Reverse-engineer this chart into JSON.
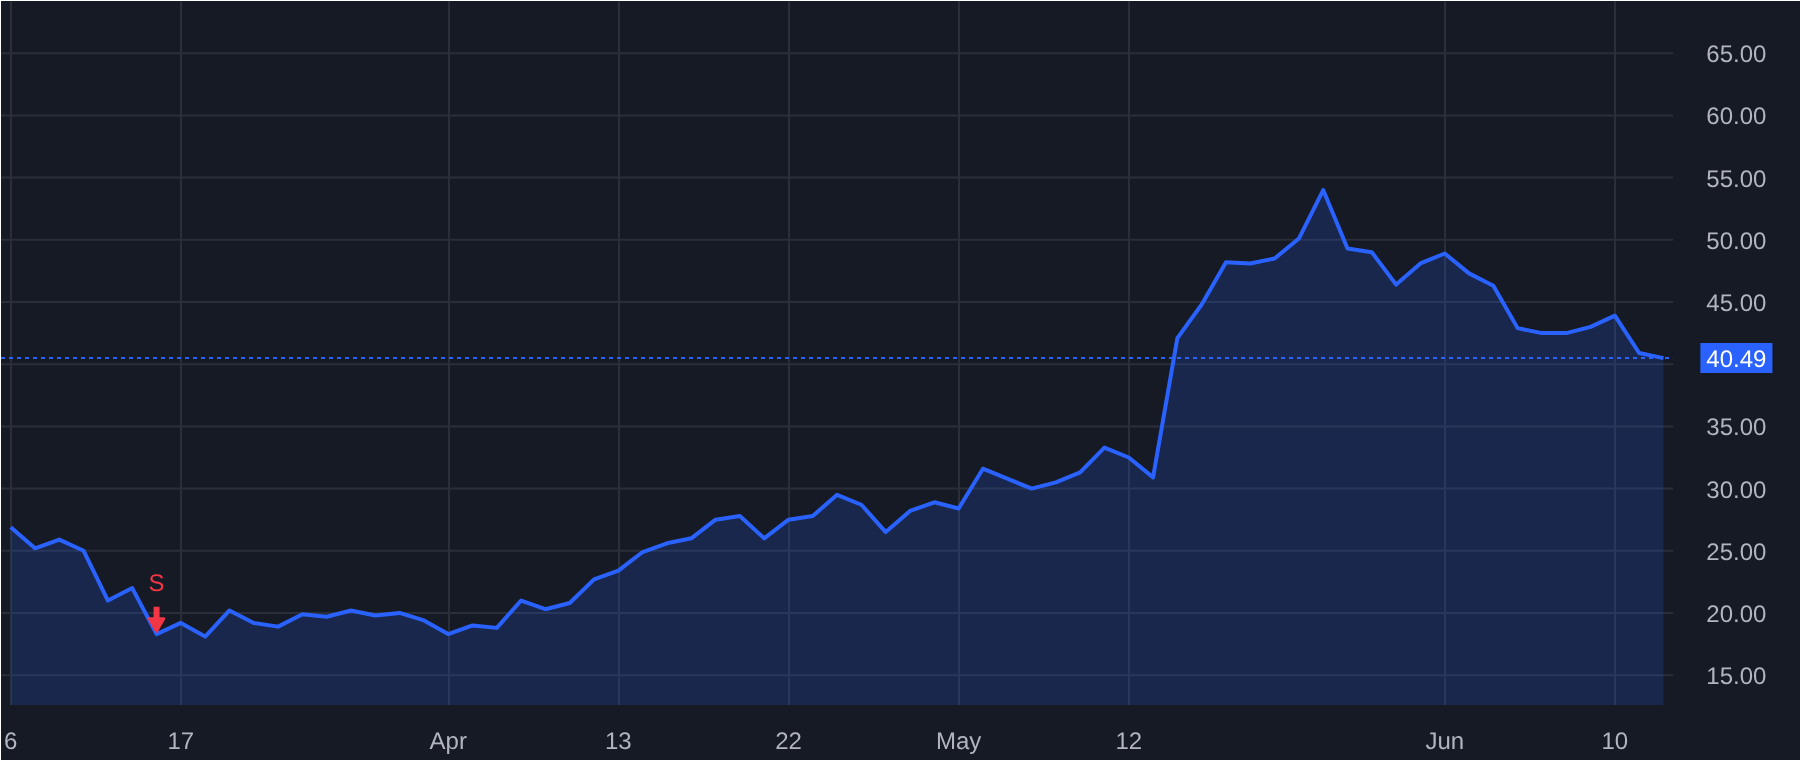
{
  "chart_data": {
    "type": "area",
    "categories": [
      "6",
      null,
      null,
      null,
      null,
      null,
      null,
      "17",
      null,
      null,
      null,
      null,
      null,
      null,
      null,
      null,
      null,
      null,
      "Apr",
      null,
      null,
      null,
      null,
      null,
      null,
      "13",
      null,
      null,
      null,
      null,
      null,
      null,
      "22",
      null,
      null,
      null,
      null,
      null,
      null,
      "May",
      null,
      null,
      null,
      null,
      null,
      null,
      "12",
      null,
      null,
      null,
      null,
      null,
      null,
      null,
      null,
      null,
      null,
      null,
      null,
      "Jun",
      null,
      null,
      null,
      null,
      null,
      null,
      "10",
      null,
      null
    ],
    "series": [
      {
        "color": "#2962ff",
        "values": [
          26.9,
          25.2,
          25.9,
          25.0,
          21.0,
          22.0,
          18.3,
          19.2,
          18.1,
          20.2,
          19.2,
          18.9,
          19.9,
          19.7,
          20.2,
          19.8,
          20.0,
          19.4,
          18.3,
          19.0,
          18.8,
          21.0,
          20.3,
          20.8,
          22.7,
          23.4,
          24.9,
          25.6,
          26.0,
          27.5,
          27.8,
          26.0,
          27.5,
          27.8,
          29.5,
          28.7,
          26.5,
          28.2,
          28.9,
          28.4,
          31.6,
          30.8,
          30.0,
          30.5,
          31.3,
          33.3,
          32.5,
          30.9,
          42.1,
          44.8,
          48.2,
          48.1,
          48.5,
          50.1,
          54.0,
          49.3,
          49.0,
          46.4,
          48.1,
          48.9,
          47.3,
          46.3,
          42.9,
          42.5,
          42.5,
          43.0,
          43.9,
          40.9,
          40.49
        ]
      }
    ],
    "ylim": [
      12.6,
      69.2
    ],
    "yticks": [
      {
        "value": 15,
        "label": "15.00"
      },
      {
        "value": 20,
        "label": "20.00"
      },
      {
        "value": 25,
        "label": "25.00"
      },
      {
        "value": 30,
        "label": "30.00"
      },
      {
        "value": 35,
        "label": "35.00"
      },
      {
        "value": 40,
        "label": null
      },
      {
        "value": 45,
        "label": "45.00"
      },
      {
        "value": 50,
        "label": "50.00"
      },
      {
        "value": 55,
        "label": "55.00"
      },
      {
        "value": 60,
        "label": "60.00"
      },
      {
        "value": 65,
        "label": "65.00"
      }
    ],
    "annotations": [
      {
        "text": "S",
        "y": 18.3
      }
    ],
    "ref_lines": [
      {
        "axis": "y",
        "value": 40.49,
        "label": "40.49",
        "color": "#2962ff",
        "line_style": "dotted"
      }
    ],
    "grid": true
  }
}
